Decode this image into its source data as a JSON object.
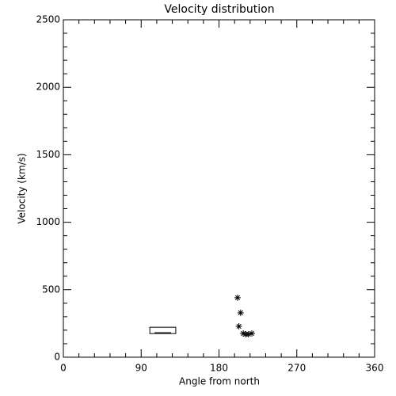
{
  "chart_data": {
    "type": "scatter",
    "title": "Velocity distribution",
    "x_label": "Angle from north",
    "y_label": "Velocity (km/s)",
    "x": [
      201.5,
      205,
      203,
      208,
      211,
      214,
      218
    ],
    "values": [
      441,
      329,
      229,
      176,
      170,
      170,
      176
    ],
    "box": {
      "x": [
        100,
        130
      ],
      "low": 175,
      "high": 222,
      "median": 182
    },
    "color": "#000000",
    "xlim": [
      0,
      360
    ],
    "xticks": [
      0,
      90,
      180,
      270,
      360
    ],
    "ylim": [
      0,
      2500
    ],
    "yticks": [
      0,
      500,
      1000,
      1500,
      2000,
      2500
    ]
  }
}
